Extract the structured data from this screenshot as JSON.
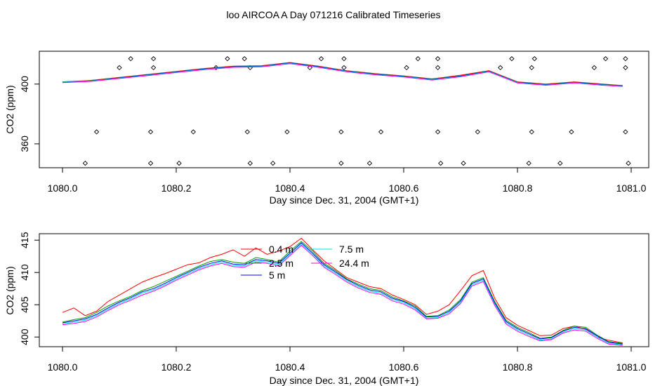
{
  "figure": {
    "title": "loo AIRCOA A  Day 071216  Calibrated Timeseries"
  },
  "chart_data": [
    {
      "type": "line",
      "xlabel": "Day since Dec. 31, 2004 (GMT+1)",
      "ylabel": "CO2 (ppm)",
      "xlim": [
        1080.0,
        1081.0
      ],
      "ylim": [
        344,
        422
      ],
      "xticks": [
        1080.0,
        1080.2,
        1080.4,
        1080.6,
        1080.8,
        1081.0
      ],
      "xtick_labels": [
        "1080.0",
        "1080.2",
        "1080.4",
        "1080.6",
        "1080.8",
        "1081.0"
      ],
      "yticks": [
        360,
        400
      ],
      "ytick_labels": [
        "360",
        "400"
      ],
      "legend": false,
      "grid": false,
      "series": [
        {
          "color": "#ff0000",
          "x": [
            1080.0,
            1080.05,
            1080.1,
            1080.15,
            1080.2,
            1080.25,
            1080.3,
            1080.35,
            1080.4,
            1080.45,
            1080.5,
            1080.55,
            1080.6,
            1080.65,
            1080.7,
            1080.75,
            1080.8,
            1080.85,
            1080.9,
            1080.95,
            1080.985
          ],
          "y": [
            401.5,
            402.5,
            404.5,
            406.5,
            408.5,
            410.5,
            412,
            412.3,
            414.5,
            412,
            409,
            407,
            405.5,
            403.5,
            406,
            409,
            401.5,
            400,
            401.5,
            400,
            399
          ]
        },
        {
          "color": "#00a000",
          "x": [
            1080.0,
            1080.05,
            1080.1,
            1080.15,
            1080.2,
            1080.25,
            1080.3,
            1080.35,
            1080.4,
            1080.45,
            1080.5,
            1080.55,
            1080.6,
            1080.65,
            1080.7,
            1080.75,
            1080.8,
            1080.85,
            1080.9,
            1080.95,
            1080.985
          ],
          "y": [
            401.5,
            402.3,
            404.3,
            406.3,
            408.3,
            410.3,
            411.8,
            412.1,
            414.3,
            411.8,
            408.8,
            406.8,
            405.3,
            403.3,
            405.5,
            408.8,
            401.3,
            399.8,
            401.3,
            399.8,
            399
          ]
        },
        {
          "color": "#0000ff",
          "x": [
            1080.0,
            1080.05,
            1080.1,
            1080.15,
            1080.2,
            1080.25,
            1080.3,
            1080.35,
            1080.4,
            1080.45,
            1080.5,
            1080.55,
            1080.6,
            1080.65,
            1080.7,
            1080.75,
            1080.8,
            1080.85,
            1080.9,
            1080.95,
            1080.985
          ],
          "y": [
            401.3,
            402.1,
            404.1,
            406.1,
            408.1,
            410.1,
            411.6,
            411.9,
            414.1,
            411.6,
            408.6,
            406.6,
            405.1,
            403.1,
            405.3,
            408.6,
            401.1,
            399.6,
            401.1,
            399.6,
            398.8
          ]
        },
        {
          "color": "#00e5e5",
          "x": [
            1080.0,
            1080.05,
            1080.1,
            1080.15,
            1080.2,
            1080.25,
            1080.3,
            1080.35,
            1080.4,
            1080.45,
            1080.5,
            1080.55,
            1080.6,
            1080.65,
            1080.7,
            1080.75,
            1080.8,
            1080.85,
            1080.9,
            1080.95,
            1080.985
          ],
          "y": [
            401.2,
            402,
            403.9,
            405.9,
            407.9,
            409.9,
            411.4,
            411.7,
            413.9,
            411.4,
            408.4,
            406.4,
            404.9,
            402.9,
            405.1,
            408.4,
            400.9,
            399.4,
            400.9,
            399.4,
            398.6
          ]
        },
        {
          "color": "#ff00ff",
          "x": [
            1080.0,
            1080.05,
            1080.1,
            1080.15,
            1080.2,
            1080.25,
            1080.3,
            1080.35,
            1080.4,
            1080.45,
            1080.5,
            1080.55,
            1080.6,
            1080.65,
            1080.7,
            1080.75,
            1080.8,
            1080.85,
            1080.9,
            1080.95,
            1080.985
          ],
          "y": [
            401,
            401.8,
            403.7,
            405.7,
            407.7,
            409.7,
            411.2,
            411.5,
            413.7,
            411.2,
            408.2,
            406.2,
            404.7,
            402.7,
            404.9,
            408.2,
            400.7,
            399.2,
            400.7,
            399.2,
            398.4
          ]
        }
      ],
      "markers": {
        "shape": "diamond",
        "x": [
          1080.12,
          1080.16,
          1080.29,
          1080.32,
          1080.455,
          1080.495,
          1080.625,
          1080.66,
          1080.79,
          1080.83,
          1080.955,
          1080.99,
          1080.1,
          1080.16,
          1080.27,
          1080.33,
          1080.435,
          1080.495,
          1080.605,
          1080.66,
          1080.77,
          1080.825,
          1080.935,
          1080.99,
          1080.06,
          1080.155,
          1080.23,
          1080.325,
          1080.395,
          1080.49,
          1080.56,
          1080.66,
          1080.73,
          1080.825,
          1080.895,
          1080.99,
          1080.04,
          1080.155,
          1080.205,
          1080.33,
          1080.37,
          1080.49,
          1080.54,
          1080.665,
          1080.705,
          1080.82,
          1080.875,
          1080.995
        ],
        "y": [
          417,
          417,
          417,
          417,
          417,
          417,
          417,
          417,
          417,
          417,
          417,
          417,
          411,
          411,
          411,
          411,
          411,
          411,
          411,
          411,
          411,
          411,
          411,
          411,
          368,
          368,
          368,
          368,
          368,
          368,
          368,
          368,
          368,
          368,
          368,
          368,
          347,
          347,
          347,
          347,
          347,
          347,
          347,
          347,
          347,
          347,
          347,
          347
        ]
      }
    },
    {
      "type": "line",
      "xlabel": "Day since Dec. 31, 2004 (GMT+1)",
      "ylabel": "CO2 (ppm)",
      "xlim": [
        1080.0,
        1081.0
      ],
      "ylim": [
        398.5,
        416
      ],
      "xticks": [
        1080.0,
        1080.2,
        1080.4,
        1080.6,
        1080.8,
        1081.0
      ],
      "xtick_labels": [
        "1080.0",
        "1080.2",
        "1080.4",
        "1080.6",
        "1080.8",
        "1081.0"
      ],
      "yticks": [
        400,
        405,
        410,
        415
      ],
      "ytick_labels": [
        "400",
        "405",
        "410",
        "415"
      ],
      "legend": true,
      "legend_position": "top-left",
      "grid": false,
      "series": [
        {
          "name": "0.4 m",
          "color": "#ff0000",
          "x": [
            1080.0,
            1080.02,
            1080.04,
            1080.06,
            1080.08,
            1080.1,
            1080.12,
            1080.14,
            1080.16,
            1080.18,
            1080.2,
            1080.22,
            1080.24,
            1080.26,
            1080.28,
            1080.3,
            1080.32,
            1080.34,
            1080.36,
            1080.38,
            1080.4,
            1080.42,
            1080.44,
            1080.46,
            1080.48,
            1080.5,
            1080.52,
            1080.54,
            1080.56,
            1080.58,
            1080.6,
            1080.62,
            1080.64,
            1080.66,
            1080.68,
            1080.7,
            1080.72,
            1080.74,
            1080.76,
            1080.78,
            1080.8,
            1080.82,
            1080.84,
            1080.86,
            1080.88,
            1080.9,
            1080.92,
            1080.94,
            1080.96,
            1080.985
          ],
          "y": [
            403.8,
            404.5,
            403.3,
            404,
            405.5,
            406.5,
            407.5,
            408.5,
            409.2,
            409.8,
            410.5,
            411.2,
            411.5,
            412.3,
            412.8,
            413.5,
            412.5,
            413.8,
            412.8,
            413.3,
            414,
            415.3,
            413.5,
            411.8,
            410.5,
            409.2,
            408.5,
            407.8,
            407.5,
            406.5,
            405.8,
            405,
            403.5,
            404,
            405,
            407.2,
            409.5,
            410.3,
            406,
            403,
            401.8,
            401,
            400.2,
            400.3,
            401.3,
            401.7,
            401.2,
            400,
            399.5,
            399.1
          ]
        },
        {
          "name": "2.5 m",
          "color": "#00a000",
          "x": [
            1080.0,
            1080.02,
            1080.04,
            1080.06,
            1080.08,
            1080.1,
            1080.12,
            1080.14,
            1080.16,
            1080.18,
            1080.2,
            1080.22,
            1080.24,
            1080.26,
            1080.28,
            1080.3,
            1080.32,
            1080.34,
            1080.36,
            1080.38,
            1080.4,
            1080.42,
            1080.44,
            1080.46,
            1080.48,
            1080.5,
            1080.52,
            1080.54,
            1080.56,
            1080.58,
            1080.6,
            1080.62,
            1080.64,
            1080.66,
            1080.68,
            1080.7,
            1080.72,
            1080.74,
            1080.76,
            1080.78,
            1080.8,
            1080.82,
            1080.84,
            1080.86,
            1080.88,
            1080.9,
            1080.92,
            1080.94,
            1080.96,
            1080.985
          ],
          "y": [
            402.3,
            402.7,
            403,
            403.8,
            404.8,
            405.6,
            406.3,
            407.2,
            407.8,
            408.6,
            409.4,
            410.2,
            411,
            411.7,
            412,
            411.6,
            411.4,
            412.3,
            412,
            411.6,
            413.3,
            414.8,
            413.3,
            411.4,
            410.3,
            409,
            408.2,
            407.5,
            407.2,
            406.2,
            405.6,
            404.8,
            403.2,
            403.3,
            404.2,
            405.8,
            408.5,
            409.2,
            405.5,
            402.6,
            401.5,
            400.7,
            399.8,
            400,
            401,
            401.7,
            401.5,
            400.3,
            399.3,
            399
          ]
        },
        {
          "name": "5 m",
          "color": "#0000ff",
          "x": [
            1080.0,
            1080.02,
            1080.04,
            1080.06,
            1080.08,
            1080.1,
            1080.12,
            1080.14,
            1080.16,
            1080.18,
            1080.2,
            1080.22,
            1080.24,
            1080.26,
            1080.28,
            1080.3,
            1080.32,
            1080.34,
            1080.36,
            1080.38,
            1080.4,
            1080.42,
            1080.44,
            1080.46,
            1080.48,
            1080.5,
            1080.52,
            1080.54,
            1080.56,
            1080.58,
            1080.6,
            1080.62,
            1080.64,
            1080.66,
            1080.68,
            1080.7,
            1080.72,
            1080.74,
            1080.76,
            1080.78,
            1080.8,
            1080.82,
            1080.84,
            1080.86,
            1080.88,
            1080.9,
            1080.92,
            1080.94,
            1080.96,
            1080.985
          ],
          "y": [
            402.2,
            402.5,
            402.8,
            403.5,
            404.5,
            405.4,
            406.1,
            407,
            407.5,
            408.3,
            409.2,
            410,
            410.8,
            411.4,
            411.8,
            411.3,
            411.2,
            412,
            411.8,
            411.4,
            413,
            414.6,
            413,
            411.2,
            410.1,
            408.9,
            408,
            407.3,
            407,
            406,
            405.5,
            404.6,
            403.1,
            403.2,
            404,
            405.6,
            408.3,
            409,
            405.3,
            402.4,
            401.3,
            400.5,
            399.7,
            399.9,
            400.9,
            401.5,
            401.3,
            400.2,
            399.2,
            398.9
          ]
        },
        {
          "name": "7.5 m",
          "color": "#00e5e5",
          "x": [
            1080.0,
            1080.02,
            1080.04,
            1080.06,
            1080.08,
            1080.1,
            1080.12,
            1080.14,
            1080.16,
            1080.18,
            1080.2,
            1080.22,
            1080.24,
            1080.26,
            1080.28,
            1080.3,
            1080.32,
            1080.34,
            1080.36,
            1080.38,
            1080.4,
            1080.42,
            1080.44,
            1080.46,
            1080.48,
            1080.5,
            1080.52,
            1080.54,
            1080.56,
            1080.58,
            1080.6,
            1080.62,
            1080.64,
            1080.66,
            1080.68,
            1080.7,
            1080.72,
            1080.74,
            1080.76,
            1080.78,
            1080.8,
            1080.82,
            1080.84,
            1080.86,
            1080.88,
            1080.9,
            1080.92,
            1080.94,
            1080.96,
            1080.985
          ],
          "y": [
            402,
            402.3,
            402.6,
            403.3,
            404.3,
            405.2,
            405.9,
            406.8,
            407.3,
            408.1,
            409,
            409.8,
            410.6,
            411.2,
            411.6,
            411.1,
            411,
            411.8,
            411.6,
            411.2,
            412.8,
            414.4,
            412.8,
            411,
            409.9,
            408.7,
            407.8,
            407.1,
            406.8,
            405.8,
            405.3,
            404.4,
            402.9,
            403,
            403.8,
            405.4,
            408.1,
            408.8,
            405.1,
            402.2,
            401.1,
            400.3,
            399.5,
            399.7,
            400.7,
            401.3,
            401.1,
            400,
            399,
            398.8
          ]
        },
        {
          "name": "24.4 m",
          "color": "#ff00ff",
          "x": [
            1080.0,
            1080.02,
            1080.04,
            1080.06,
            1080.08,
            1080.1,
            1080.12,
            1080.14,
            1080.16,
            1080.18,
            1080.2,
            1080.22,
            1080.24,
            1080.26,
            1080.28,
            1080.3,
            1080.32,
            1080.34,
            1080.36,
            1080.38,
            1080.4,
            1080.42,
            1080.44,
            1080.46,
            1080.48,
            1080.5,
            1080.52,
            1080.54,
            1080.56,
            1080.58,
            1080.6,
            1080.62,
            1080.64,
            1080.66,
            1080.68,
            1080.7,
            1080.72,
            1080.74,
            1080.76,
            1080.78,
            1080.8,
            1080.82,
            1080.84,
            1080.86,
            1080.88,
            1080.9,
            1080.92,
            1080.94,
            1080.96,
            1080.985
          ],
          "y": [
            401.9,
            402.1,
            402.4,
            403.1,
            404.1,
            405,
            405.7,
            406.5,
            407.1,
            407.9,
            408.8,
            409.6,
            410.4,
            411,
            411.4,
            410.9,
            410.8,
            411.6,
            411.4,
            411,
            412.6,
            414.2,
            412.6,
            410.8,
            409.7,
            408.5,
            407.6,
            406.9,
            406.6,
            405.6,
            405.1,
            404.2,
            402.8,
            402.9,
            403.6,
            405.2,
            407.9,
            408.6,
            404.9,
            402,
            400.9,
            400.1,
            399.4,
            399.6,
            400.6,
            401.1,
            400.9,
            399.8,
            398.9,
            398.7
          ]
        }
      ]
    }
  ]
}
